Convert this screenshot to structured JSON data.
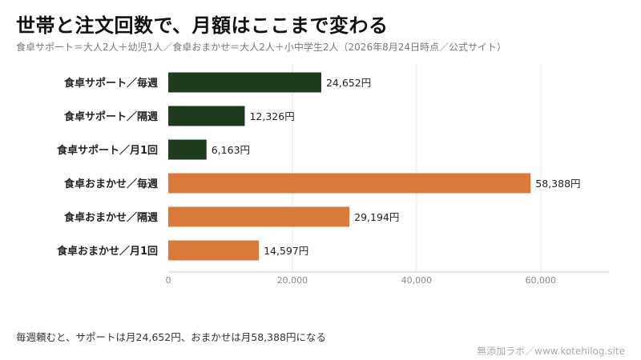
{
  "title": "世帯と注文回数で、月額はここまで変わる",
  "subtitle": "食卓サポート＝大人2人＋幼児1人／食卓おまかせ＝大人2人＋小中学生2人（2026年8月24日時点／公式サイト）",
  "footnote": "毎週頼むと、サポートは月24,652円、おまかせは月58,388円になる",
  "credit": "無添加ラボ／www.kotehilog.site",
  "colors": {
    "support": "#1e3b20",
    "omakase": "#d97a3a",
    "grid": "#e6e6e6",
    "axis": "#cccccc"
  },
  "chart_data": {
    "type": "bar",
    "orientation": "horizontal",
    "categories": [
      "食卓サポート／毎週",
      "食卓サポート／隔週",
      "食卓サポート／月1回",
      "食卓おまかせ／毎週",
      "食卓おまかせ／隔週",
      "食卓おまかせ／月1回"
    ],
    "values": [
      24652,
      12326,
      6163,
      58388,
      29194,
      14597
    ],
    "value_labels": [
      "24,652円",
      "12,326円",
      "6,163円",
      "58,388円",
      "29,194円",
      "14,597円"
    ],
    "bar_colors": [
      "#1e3b20",
      "#1e3b20",
      "#1e3b20",
      "#d97a3a",
      "#d97a3a",
      "#d97a3a"
    ],
    "xlim": [
      0,
      71000
    ],
    "xticks": [
      0,
      20000,
      40000,
      60000
    ],
    "xtick_labels": [
      "0",
      "20,000",
      "40,000",
      "60,000"
    ],
    "grid": true,
    "legend": "none"
  }
}
